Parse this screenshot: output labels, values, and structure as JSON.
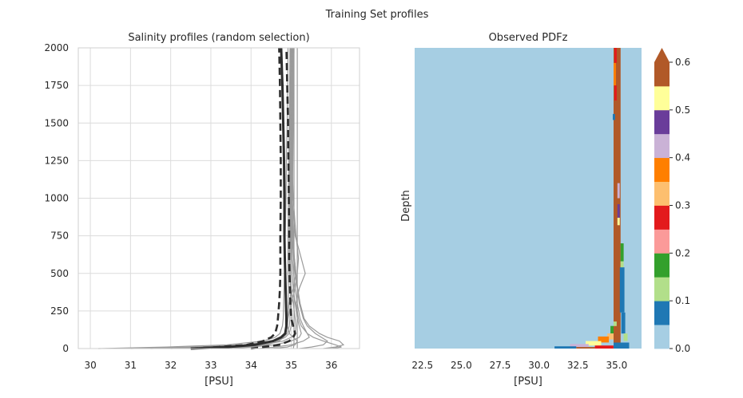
{
  "figure": {
    "suptitle": "Training Set profiles"
  },
  "colors": {
    "profile_gray": "#9a9a9a",
    "mean_line": "#2d2d2d",
    "grid": "#dcdcdc",
    "background": "#a6cee3"
  },
  "chart_data": [
    {
      "type": "line",
      "title": "Salinity profiles (random selection)",
      "xlabel": "[PSU]",
      "ylabel": "",
      "xlim": [
        29.7,
        36.7
      ],
      "ylim": [
        0,
        2000
      ],
      "xticks": [
        30,
        31,
        32,
        33,
        34,
        35,
        36
      ],
      "yticks": [
        0,
        250,
        500,
        750,
        1000,
        1250,
        1500,
        1750,
        2000
      ],
      "grid": true,
      "depth": [
        0,
        10,
        25,
        50,
        75,
        100,
        150,
        200,
        300,
        400,
        500,
        600,
        750,
        1000,
        1250,
        1500,
        1750,
        2000
      ],
      "series": [
        {
          "role": "profile",
          "values": [
            30.2,
            31.9,
            33.4,
            34.3,
            34.6,
            34.72,
            34.78,
            34.8,
            34.81,
            34.82,
            34.83,
            34.84,
            34.85,
            34.87,
            34.88,
            34.9,
            34.91,
            34.92
          ]
        },
        {
          "role": "profile",
          "values": [
            31.0,
            32.6,
            33.8,
            34.5,
            34.75,
            34.85,
            34.9,
            34.92,
            34.93,
            34.93,
            34.92,
            34.92,
            34.92,
            34.93,
            34.94,
            34.95,
            34.96,
            34.97
          ]
        },
        {
          "role": "profile",
          "values": [
            32.0,
            33.1,
            34.1,
            34.65,
            34.85,
            34.95,
            35.0,
            35.02,
            35.0,
            34.98,
            34.96,
            34.95,
            34.95,
            34.96,
            34.97,
            34.98,
            34.99,
            35.0
          ]
        },
        {
          "role": "profile",
          "values": [
            32.8,
            33.6,
            34.3,
            34.8,
            35.0,
            35.1,
            35.12,
            35.1,
            35.05,
            35.0,
            34.98,
            34.97,
            34.97,
            34.98,
            34.99,
            35.0,
            35.01,
            35.02
          ]
        },
        {
          "role": "profile",
          "values": [
            33.5,
            34.0,
            34.6,
            35.0,
            35.2,
            35.25,
            35.2,
            35.15,
            35.1,
            35.05,
            35.02,
            35.0,
            34.99,
            34.99,
            35.0,
            35.01,
            35.02,
            35.03
          ]
        },
        {
          "role": "profile",
          "values": [
            34.2,
            34.6,
            35.0,
            35.3,
            35.45,
            35.4,
            35.3,
            35.22,
            35.15,
            35.1,
            35.06,
            35.03,
            35.01,
            35.0,
            35.01,
            35.02,
            35.03,
            35.04
          ]
        },
        {
          "role": "profile",
          "values": [
            35.2,
            35.5,
            35.8,
            35.9,
            35.75,
            35.6,
            35.4,
            35.3,
            35.2,
            35.15,
            35.1,
            35.06,
            35.03,
            35.02,
            35.03,
            35.03,
            35.04,
            35.05
          ]
        },
        {
          "role": "profile",
          "values": [
            35.8,
            36.1,
            36.3,
            36.2,
            35.9,
            35.7,
            35.45,
            35.32,
            35.22,
            35.16,
            35.12,
            35.08,
            35.05,
            35.03,
            35.04,
            35.05,
            35.06,
            35.07
          ]
        },
        {
          "role": "profile",
          "values": [
            36.0,
            36.25,
            36.1,
            35.8,
            35.55,
            35.4,
            35.25,
            35.18,
            35.12,
            35.2,
            35.35,
            35.25,
            35.1,
            35.02,
            35.03,
            35.04,
            35.05,
            35.05
          ]
        },
        {
          "role": "profile",
          "values": [
            33.0,
            33.8,
            34.4,
            34.7,
            34.8,
            34.85,
            34.88,
            34.9,
            34.95,
            35.05,
            35.12,
            35.08,
            35.0,
            34.95,
            34.96,
            34.97,
            34.98,
            34.99
          ]
        },
        {
          "role": "profile",
          "values": [
            34.5,
            34.9,
            35.1,
            35.15,
            35.05,
            34.95,
            34.9,
            34.92,
            35.0,
            35.1,
            35.15,
            35.18,
            35.12,
            35.05,
            35.02,
            35.02,
            35.03,
            35.04
          ]
        },
        {
          "role": "profile",
          "values": [
            31.5,
            32.8,
            33.9,
            34.55,
            34.8,
            34.9,
            34.95,
            34.97,
            34.98,
            34.98,
            34.97,
            34.96,
            34.96,
            34.96,
            34.97,
            34.98,
            34.99,
            35.0
          ]
        },
        {
          "role": "profile",
          "values": [
            35.05,
            35.06,
            35.07,
            35.07,
            35.07,
            35.07,
            35.07,
            35.07,
            35.07,
            35.07,
            35.07,
            35.07,
            35.07,
            35.07,
            35.07,
            35.07,
            35.07,
            35.07
          ]
        },
        {
          "role": "profile",
          "values": [
            35.15,
            35.15,
            35.15,
            35.15,
            35.15,
            35.15,
            35.15,
            35.15,
            35.15,
            35.15,
            35.15,
            35.15,
            35.15,
            35.15,
            35.15,
            35.15,
            35.15,
            35.15
          ]
        },
        {
          "role": "mean",
          "values": [
            32.5,
            33.4,
            34.1,
            34.55,
            34.75,
            34.85,
            34.88,
            34.88,
            34.87,
            34.86,
            34.85,
            34.84,
            34.83,
            34.83,
            34.82,
            34.8,
            34.78,
            34.75
          ]
        },
        {
          "role": "std-low",
          "values": [
            32.5,
            33.2,
            33.9,
            34.3,
            34.5,
            34.6,
            34.65,
            34.67,
            34.7,
            34.72,
            34.73,
            34.73,
            34.73,
            34.74,
            34.74,
            34.73,
            34.72,
            34.7
          ]
        },
        {
          "role": "std-high",
          "values": [
            34.0,
            34.3,
            34.7,
            34.95,
            35.05,
            35.1,
            35.05,
            35.0,
            34.98,
            34.97,
            34.96,
            34.95,
            34.95,
            34.94,
            34.93,
            34.92,
            34.9,
            34.88
          ]
        }
      ]
    },
    {
      "type": "heatmap",
      "title": "Observed PDFz",
      "xlabel": "[PSU]",
      "ylabel": "Depth",
      "xlim": [
        22.0,
        36.6
      ],
      "xticks": [
        22.5,
        25.0,
        27.5,
        30.0,
        32.5,
        35.0
      ],
      "xtick_labels": [
        "22.5",
        "25.0",
        "27.5",
        "30.0",
        "32.5",
        "35.0"
      ],
      "ylim": [
        0,
        2000
      ],
      "colorbar": {
        "ticks": [
          "0.0",
          "0.1",
          "0.2",
          "0.3",
          "0.4",
          "0.5",
          "0.6"
        ],
        "range": [
          0,
          0.6
        ],
        "extend": "max",
        "levels": 12,
        "colors": [
          "#a6cee3",
          "#1f78b4",
          "#b2df8a",
          "#33a02c",
          "#fb9a99",
          "#e31a1c",
          "#fdbf6f",
          "#ff7f00",
          "#cab2d6",
          "#6a3d9a",
          "#ffff99",
          "#b15928"
        ]
      },
      "highlight_cells": [
        {
          "x0": 34.8,
          "x1": 35.25,
          "d0": 0,
          "d1": 2000,
          "level": 11
        },
        {
          "x0": 34.85,
          "x1": 35.0,
          "d0": 1900,
          "d1": 2000,
          "level": 5
        },
        {
          "x0": 34.8,
          "x1": 34.95,
          "d0": 1750,
          "d1": 1900,
          "level": 7
        },
        {
          "x0": 34.85,
          "x1": 35.0,
          "d0": 1650,
          "d1": 1750,
          "level": 5
        },
        {
          "x0": 34.75,
          "x1": 34.9,
          "d0": 1520,
          "d1": 1560,
          "level": 1
        },
        {
          "x0": 35.05,
          "x1": 35.2,
          "d0": 1000,
          "d1": 1100,
          "level": 8
        },
        {
          "x0": 35.05,
          "x1": 35.2,
          "d0": 870,
          "d1": 960,
          "level": 9
        },
        {
          "x0": 35.05,
          "x1": 35.2,
          "d0": 820,
          "d1": 870,
          "level": 10
        },
        {
          "x0": 35.0,
          "x1": 35.2,
          "d0": 700,
          "d1": 820,
          "level": 11
        },
        {
          "x0": 35.25,
          "x1": 35.45,
          "d0": 580,
          "d1": 700,
          "level": 3
        },
        {
          "x0": 35.25,
          "x1": 35.45,
          "d0": 540,
          "d1": 580,
          "level": 2
        },
        {
          "x0": 35.2,
          "x1": 35.5,
          "d0": 240,
          "d1": 540,
          "level": 1
        },
        {
          "x0": 35.3,
          "x1": 35.55,
          "d0": 100,
          "d1": 240,
          "level": 1
        },
        {
          "x0": 35.45,
          "x1": 35.7,
          "d0": 50,
          "d1": 100,
          "level": 2
        },
        {
          "x0": 34.8,
          "x1": 35.0,
          "d0": 150,
          "d1": 180,
          "level": 2
        },
        {
          "x0": 34.6,
          "x1": 34.8,
          "d0": 100,
          "d1": 150,
          "level": 3
        },
        {
          "x0": 34.4,
          "x1": 34.8,
          "d0": 60,
          "d1": 100,
          "level": 6
        },
        {
          "x0": 33.8,
          "x1": 34.5,
          "d0": 40,
          "d1": 80,
          "level": 7
        },
        {
          "x0": 33.0,
          "x1": 34.0,
          "d0": 20,
          "d1": 50,
          "level": 10
        },
        {
          "x0": 32.0,
          "x1": 33.2,
          "d0": 10,
          "d1": 30,
          "level": 8
        },
        {
          "x0": 31.0,
          "x1": 32.4,
          "d0": 0,
          "d1": 15,
          "level": 1
        },
        {
          "x0": 32.4,
          "x1": 33.6,
          "d0": 0,
          "d1": 10,
          "level": 11
        },
        {
          "x0": 33.6,
          "x1": 34.8,
          "d0": 0,
          "d1": 20,
          "level": 5
        },
        {
          "x0": 34.8,
          "x1": 35.8,
          "d0": 0,
          "d1": 40,
          "level": 1
        }
      ]
    }
  ]
}
